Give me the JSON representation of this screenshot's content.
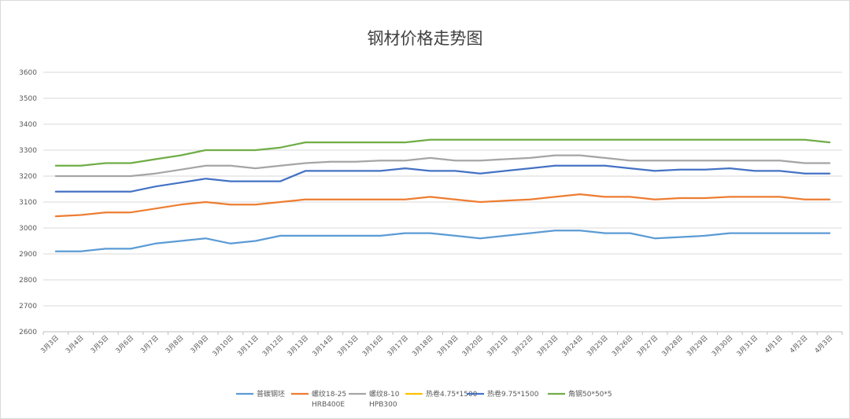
{
  "chart_data": {
    "type": "line",
    "title": "钢材价格走势图",
    "xlabel": "",
    "ylabel": "",
    "ylim": [
      2600,
      3600
    ],
    "yticks": [
      2600,
      2700,
      2800,
      2900,
      3000,
      3100,
      3200,
      3300,
      3400,
      3500,
      3600
    ],
    "grid": true,
    "legend_position": "bottom",
    "categories": [
      "3月3日",
      "3月4日",
      "3月5日",
      "3月6日",
      "3月7日",
      "3月8日",
      "3月9日",
      "3月10日",
      "3月11日",
      "3月12日",
      "3月13日",
      "3月14日",
      "3月15日",
      "3月16日",
      "3月17日",
      "3月18日",
      "3月19日",
      "3月20日",
      "3月21日",
      "3月22日",
      "3月23日",
      "3月24日",
      "3月25日",
      "3月26日",
      "3月27日",
      "3月28日",
      "3月29日",
      "3月30日",
      "3月31日",
      "4月1日",
      "4月2日",
      "4月3日"
    ],
    "series": [
      {
        "name": "普碳钢坯",
        "color": "#5b9bd5",
        "values": [
          2910,
          2910,
          2920,
          2920,
          2940,
          2950,
          2960,
          2940,
          2950,
          2970,
          2970,
          2970,
          2970,
          2970,
          2980,
          2980,
          2970,
          2960,
          2970,
          2980,
          2990,
          2990,
          2980,
          2980,
          2960,
          2965,
          2970,
          2980,
          2980,
          2980,
          2980,
          2980
        ]
      },
      {
        "name": "螺纹18-25 HRB400E",
        "name_lines": [
          "螺纹18-25",
          "HRB400E"
        ],
        "color": "#ed7d31",
        "values": [
          3045,
          3050,
          3060,
          3060,
          3075,
          3090,
          3100,
          3090,
          3090,
          3100,
          3110,
          3110,
          3110,
          3110,
          3110,
          3120,
          3110,
          3100,
          3105,
          3110,
          3120,
          3130,
          3120,
          3120,
          3110,
          3115,
          3115,
          3120,
          3120,
          3120,
          3110,
          3110
        ]
      },
      {
        "name": "螺纹8-10 HPB300",
        "name_lines": [
          "螺纹8-10",
          "HPB300"
        ],
        "color": "#a5a5a5",
        "values": [
          3200,
          3200,
          3200,
          3200,
          3210,
          3225,
          3240,
          3240,
          3230,
          3240,
          3250,
          3255,
          3255,
          3260,
          3260,
          3270,
          3260,
          3260,
          3265,
          3270,
          3280,
          3280,
          3270,
          3260,
          3260,
          3260,
          3260,
          3260,
          3260,
          3260,
          3250,
          3250
        ]
      },
      {
        "name": "热卷4.75*1500",
        "color": "#ffc000",
        "values": [
          null,
          null,
          null,
          null,
          null,
          null,
          null,
          null,
          null,
          null,
          null,
          null,
          null,
          null,
          null,
          null,
          null,
          null,
          null,
          null,
          null,
          null,
          null,
          null,
          null,
          null,
          null,
          null,
          null,
          null,
          null,
          null
        ]
      },
      {
        "name": "热卷9.75*1500",
        "color": "#4472c4",
        "values": [
          3140,
          3140,
          3140,
          3140,
          3160,
          3175,
          3190,
          3180,
          3180,
          3180,
          3220,
          3220,
          3220,
          3220,
          3230,
          3220,
          3220,
          3210,
          3220,
          3230,
          3240,
          3240,
          3240,
          3230,
          3220,
          3225,
          3225,
          3230,
          3220,
          3220,
          3210,
          3210
        ]
      },
      {
        "name": "角钢50*50*5",
        "color": "#70ad47",
        "values": [
          3240,
          3240,
          3250,
          3250,
          3265,
          3280,
          3300,
          3300,
          3300,
          3310,
          3330,
          3330,
          3330,
          3330,
          3330,
          3340,
          3340,
          3340,
          3340,
          3340,
          3340,
          3340,
          3340,
          3340,
          3340,
          3340,
          3340,
          3340,
          3340,
          3340,
          3340,
          3330
        ]
      }
    ]
  }
}
